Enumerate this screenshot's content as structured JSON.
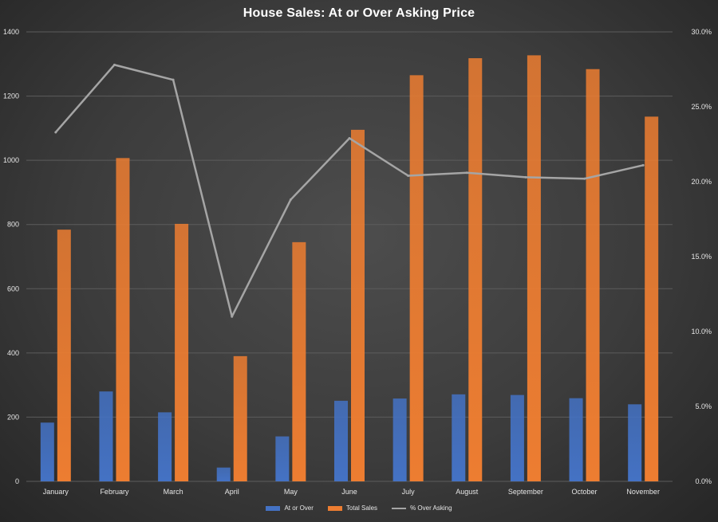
{
  "chart_data": {
    "type": "bar",
    "title": "House Sales: At or Over Asking Price",
    "categories": [
      "January",
      "February",
      "March",
      "April",
      "May",
      "June",
      "July",
      "August",
      "September",
      "October",
      "November"
    ],
    "series": [
      {
        "name": "At or Over",
        "kind": "bar",
        "axis": "left",
        "color": "#4472C4",
        "values": [
          183,
          280,
          215,
          43,
          140,
          251,
          258,
          271,
          269,
          259,
          240
        ]
      },
      {
        "name": "Total Sales",
        "kind": "bar",
        "axis": "left",
        "color": "#ED7D31",
        "values": [
          784,
          1007,
          802,
          390,
          745,
          1095,
          1265,
          1318,
          1327,
          1284,
          1136
        ]
      },
      {
        "name": "% Over Asking",
        "kind": "line",
        "axis": "right",
        "color": "#A5A5A5",
        "values": [
          23.3,
          27.8,
          26.8,
          11.0,
          18.8,
          22.9,
          20.4,
          20.6,
          20.3,
          20.2,
          21.1
        ]
      }
    ],
    "y_left": {
      "min": 0,
      "max": 1400,
      "ticks": [
        "0",
        "200",
        "400",
        "600",
        "800",
        "1000",
        "1200",
        "1400"
      ]
    },
    "y_right": {
      "min": 0,
      "max": 30,
      "ticks": [
        "0.0%",
        "5.0%",
        "10.0%",
        "15.0%",
        "20.0%",
        "25.0%",
        "30.0%"
      ]
    },
    "grid": true,
    "legend_position": "bottom"
  }
}
